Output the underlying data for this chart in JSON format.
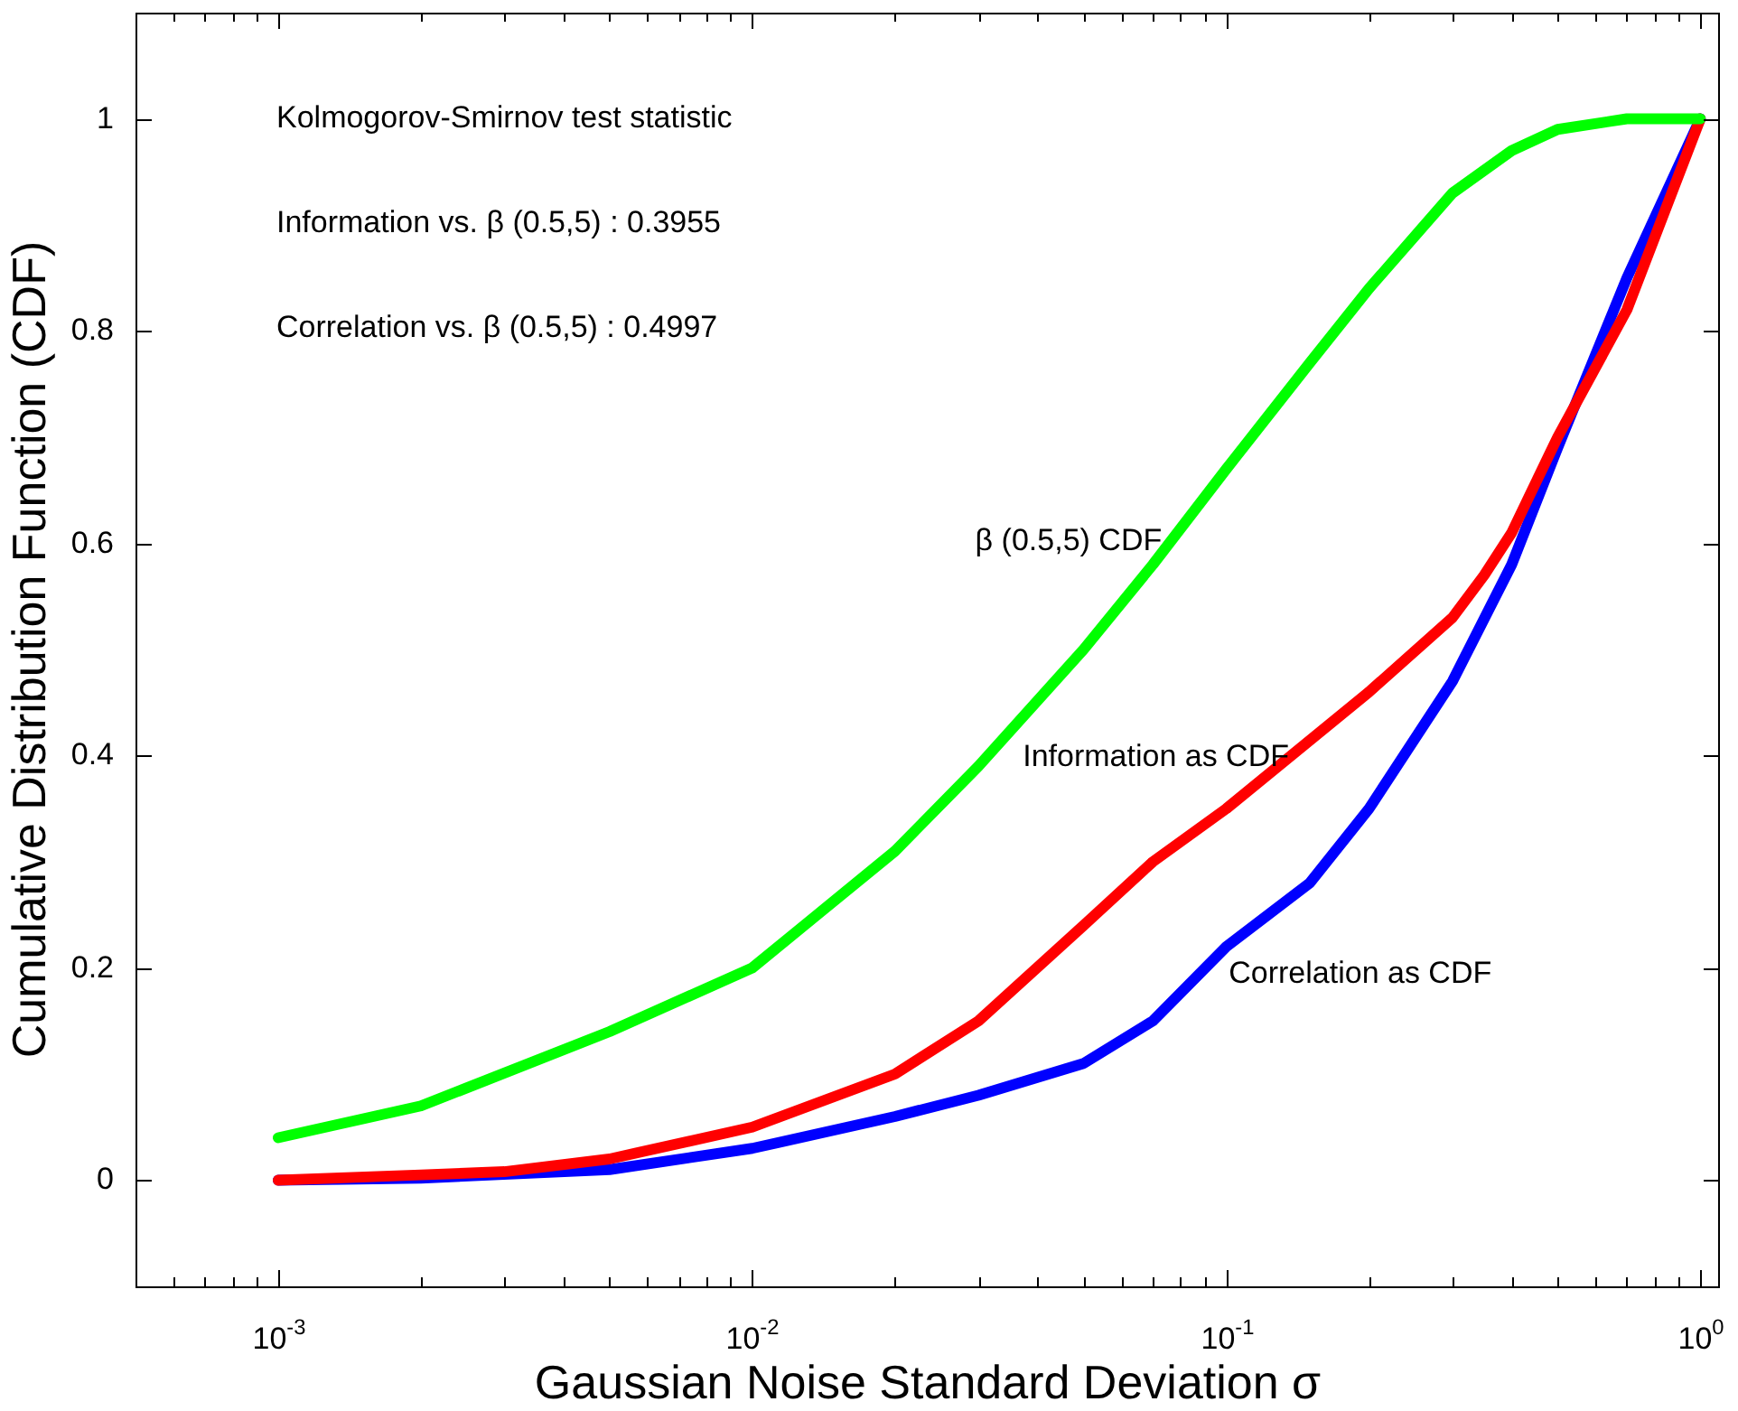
{
  "chart_data": {
    "type": "line",
    "xlabel": "Gaussian Noise Standard Deviation σ",
    "ylabel": "Cumulative Distribution Function (CDF)",
    "log": "x",
    "grid": false,
    "legend": false,
    "marker": "none",
    "line_style": "solid",
    "xlim": [
      0.0005,
      1.1
    ],
    "ylim": [
      -0.1,
      1.1
    ],
    "xticks": [
      {
        "value": 0.0006,
        "label": null
      },
      {
        "value": 0.0007,
        "label": null
      },
      {
        "value": 0.0008,
        "label": null
      },
      {
        "value": 0.0009,
        "label": null
      },
      {
        "value": 0.001,
        "label": "10$^{-3}$"
      },
      {
        "value": 0.002,
        "label": null
      },
      {
        "value": 0.003,
        "label": null
      },
      {
        "value": 0.004,
        "label": null
      },
      {
        "value": 0.005,
        "label": null
      },
      {
        "value": 0.006,
        "label": null
      },
      {
        "value": 0.007,
        "label": null
      },
      {
        "value": 0.008,
        "label": null
      },
      {
        "value": 0.009,
        "label": null
      },
      {
        "value": 0.01,
        "label": "10$^{-2}$"
      },
      {
        "value": 0.02,
        "label": null
      },
      {
        "value": 0.03,
        "label": null
      },
      {
        "value": 0.04,
        "label": null
      },
      {
        "value": 0.05,
        "label": null
      },
      {
        "value": 0.06,
        "label": null
      },
      {
        "value": 0.07,
        "label": null
      },
      {
        "value": 0.08,
        "label": null
      },
      {
        "value": 0.09,
        "label": null
      },
      {
        "value": 0.1,
        "label": "10$^{-1}$"
      },
      {
        "value": 0.2,
        "label": null
      },
      {
        "value": 0.3,
        "label": null
      },
      {
        "value": 0.4,
        "label": null
      },
      {
        "value": 0.5,
        "label": null
      },
      {
        "value": 0.6,
        "label": null
      },
      {
        "value": 0.7,
        "label": null
      },
      {
        "value": 0.8,
        "label": null
      },
      {
        "value": 0.9,
        "label": null
      },
      {
        "value": 1,
        "label": "10$^{0}$"
      }
    ],
    "yticks": [
      0,
      0.2,
      0.4,
      0.6,
      0.8,
      1
    ],
    "series": [
      {
        "color": "#00ff00",
        "x": [
          0.001,
          0.002,
          0.005,
          0.01,
          0.02,
          0.03,
          0.05,
          0.07,
          0.1,
          0.15,
          0.2,
          0.3,
          0.4,
          0.5,
          0.7,
          1
        ],
        "values": [
          0.04,
          0.07,
          0.14,
          0.2,
          0.31,
          0.39,
          0.5,
          0.58,
          0.67,
          0.77,
          0.84,
          0.93,
          0.97,
          0.99,
          1,
          1
        ]
      },
      {
        "color": "#ff0000",
        "x": [
          0.001,
          0.002,
          0.003,
          0.005,
          0.01,
          0.02,
          0.03,
          0.05,
          0.07,
          0.1,
          0.2,
          0.3,
          0.35,
          0.4,
          0.5,
          0.7,
          1
        ],
        "values": [
          0,
          0.005,
          0.008,
          0.02,
          0.05,
          0.1,
          0.15,
          0.24,
          0.3,
          0.35,
          0.46,
          0.53,
          0.57,
          0.61,
          0.7,
          0.82,
          1
        ]
      },
      {
        "color": "#0000ff",
        "x": [
          0.001,
          0.002,
          0.005,
          0.01,
          0.02,
          0.03,
          0.05,
          0.07,
          0.1,
          0.15,
          0.2,
          0.3,
          0.4,
          0.5,
          0.7,
          1
        ],
        "values": [
          0,
          0.002,
          0.01,
          0.03,
          0.06,
          0.08,
          0.11,
          0.15,
          0.22,
          0.28,
          0.35,
          0.47,
          0.58,
          0.69,
          0.85,
          1
        ]
      }
    ],
    "annotations": [
      "Kolmogorov-Smirnov test statistic",
      "Information vs. β (0.5,5) : 0.3955",
      "Correlation vs. β (0.5,5) : 0.4997",
      "β (0.5,5) CDF",
      "Information as CDF",
      "Correlation as CDF"
    ]
  }
}
